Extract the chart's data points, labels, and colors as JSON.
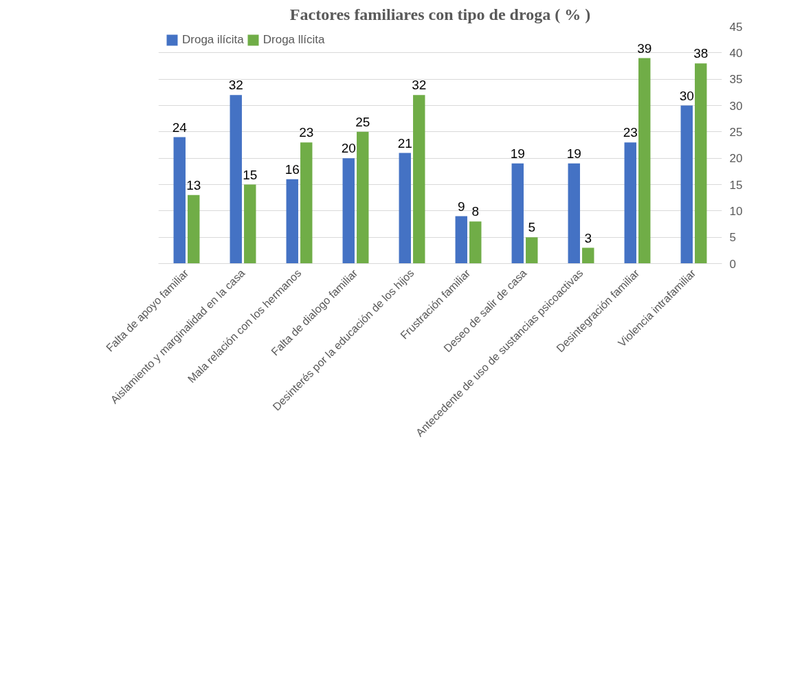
{
  "chart_data": {
    "type": "bar",
    "title": "Factores familiares con tipo de droga ( % )",
    "categories": [
      "Falta de apoyo familiar",
      "Aislamiento y marginalidad en la casa",
      "Mala relación con los hermanos",
      "Falta de dialogo familiar",
      "Desinterés por la educación de los hijos",
      "Frustración familiar",
      "Deseo de salir de casa",
      "Antecedente de uso de sustancias psicoactivas",
      "Desintegración familiar",
      "Violencia intrafamiliar"
    ],
    "series": [
      {
        "name": "Droga ilícita",
        "color": "#4472c4",
        "values": [
          24,
          32,
          16,
          20,
          21,
          9,
          19,
          19,
          23,
          30
        ]
      },
      {
        "name": "Droga llícita",
        "color": "#70ad47",
        "values": [
          13,
          15,
          23,
          25,
          32,
          8,
          5,
          3,
          39,
          38
        ]
      }
    ],
    "ylim": [
      0,
      45
    ],
    "yticks": [
      0,
      5,
      10,
      15,
      20,
      25,
      30,
      35,
      40,
      45
    ],
    "grid": "y",
    "legend": "top left",
    "data_labels": true
  }
}
